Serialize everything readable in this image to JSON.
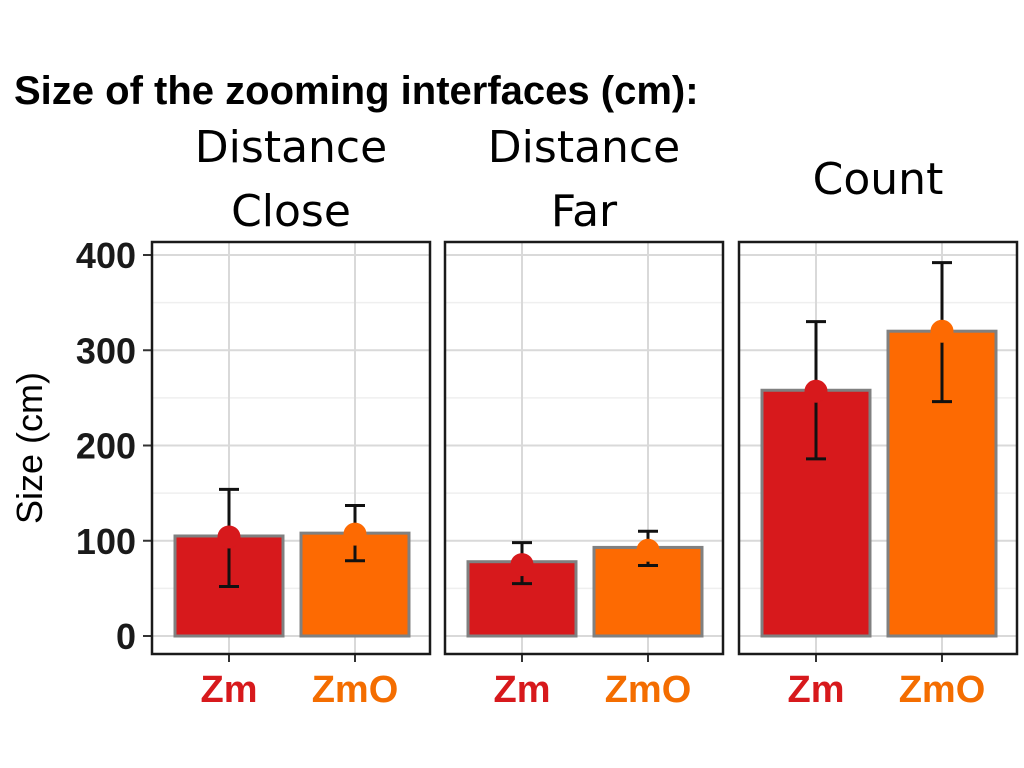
{
  "chart_data": {
    "type": "bar",
    "title": "Size of the zooming interfaces (cm):",
    "ylabel": "Size (cm)",
    "ylim": [
      0,
      410
    ],
    "yticks": [
      0,
      100,
      200,
      300,
      400
    ],
    "categories": [
      "Zm",
      "ZmO"
    ],
    "category_colors": {
      "Zm": "#d7191c",
      "ZmO": "#fd6a02"
    },
    "category_label_colors": {
      "Zm": "#d7191c",
      "ZmO": "#f46d00"
    },
    "grid": true,
    "facets": [
      {
        "label_lines": [
          "Distance",
          "Close"
        ],
        "values": [
          105,
          108
        ],
        "means": [
          104,
          107
        ],
        "error_low": [
          52,
          79
        ],
        "error_high": [
          154,
          137
        ]
      },
      {
        "label_lines": [
          "Distance",
          "Far"
        ],
        "values": [
          78,
          93
        ],
        "means": [
          75,
          90
        ],
        "error_low": [
          55,
          74
        ],
        "error_high": [
          98,
          110
        ]
      },
      {
        "label_lines": [
          "Count"
        ],
        "values": [
          258,
          320
        ],
        "means": [
          257,
          320
        ],
        "error_low": [
          186,
          246
        ],
        "error_high": [
          330,
          392
        ]
      }
    ]
  }
}
